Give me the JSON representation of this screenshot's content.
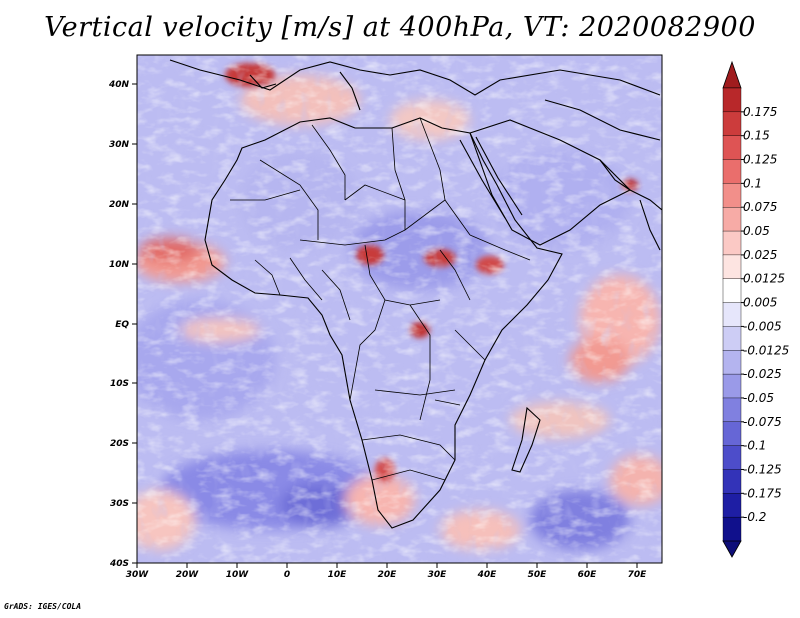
{
  "title": "Vertical velocity [m/s] at 400hPa, VT: 2020082900",
  "credit": "GrADS: IGES/COLA",
  "map": {
    "region": "Africa",
    "lon_range": [
      -30,
      75
    ],
    "lat_range": [
      -40,
      45
    ],
    "lon_ticks": [
      "30W",
      "20W",
      "10W",
      "0",
      "10E",
      "20E",
      "30E",
      "40E",
      "50E",
      "60E",
      "70E"
    ],
    "lat_ticks": [
      "40N",
      "30N",
      "20N",
      "10N",
      "EQ",
      "10S",
      "20S",
      "30S",
      "40S"
    ],
    "field": "vertical velocity",
    "pressure_level": "400hPa"
  },
  "colorbar": {
    "labels": [
      "0.175",
      "0.15",
      "0.125",
      "0.1",
      "0.075",
      "0.05",
      "0.025",
      "0.0125",
      "0.005",
      "-0.005",
      "-0.0125",
      "-0.025",
      "-0.05",
      "-0.075",
      "-0.1",
      "-0.125",
      "-0.175",
      "-0.2"
    ],
    "colors": [
      "#b8282a",
      "#cc3c3c",
      "#de5454",
      "#ea6e6c",
      "#f28f8a",
      "#f7aba6",
      "#fbc9c5",
      "#fde4e1",
      "#ffffff",
      "#e6e6fb",
      "#cdcdf5",
      "#b4b4ef",
      "#9a9ae8",
      "#8080e0",
      "#6666d6",
      "#4d4dca",
      "#3333b8",
      "#1e1ea4",
      "#10108c"
    ],
    "top_color": "#a01c1e",
    "bottom_color": "#0e0e78"
  }
}
